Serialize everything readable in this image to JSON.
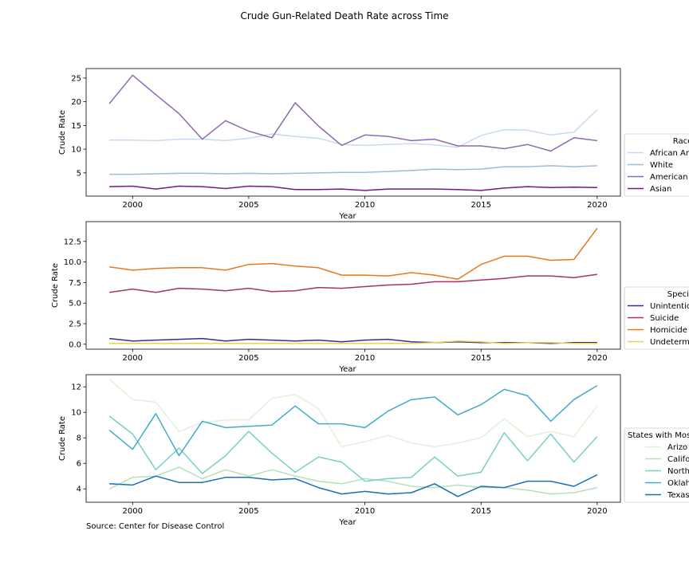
{
  "title": "Crude Gun-Related Death Rate across Time",
  "source": "Source: Center for Disease Control",
  "chart_data": [
    {
      "type": "line",
      "xlabel": "Year",
      "ylabel": "Crude Rate",
      "xlim": [
        1998,
        2021
      ],
      "ylim": [
        0.1,
        27.0
      ],
      "xticks": [
        2000,
        2005,
        2010,
        2015,
        2020
      ],
      "yticks": [
        5,
        10,
        15,
        20,
        25
      ],
      "ytick_labels": [
        "5",
        "10",
        "15",
        "20",
        "25"
      ],
      "legend_title": "Race",
      "legend_placement": "right",
      "x": [
        1999,
        2000,
        2001,
        2002,
        2003,
        2004,
        2005,
        2006,
        2007,
        2008,
        2009,
        2010,
        2011,
        2012,
        2013,
        2014,
        2015,
        2016,
        2017,
        2018,
        2019,
        2020
      ],
      "series": [
        {
          "name": "African American",
          "legend_label": "African An",
          "color": "#c6dbef",
          "values": [
            11.9,
            11.9,
            11.8,
            12.1,
            12.1,
            11.8,
            12.3,
            13.2,
            12.7,
            12.3,
            11.0,
            10.8,
            11.0,
            11.2,
            10.9,
            10.4,
            12.9,
            14.1,
            14.0,
            13.0,
            13.6,
            18.3
          ]
        },
        {
          "name": "White",
          "legend_label": "White",
          "color": "#9ebcda",
          "values": [
            4.7,
            4.7,
            4.8,
            4.9,
            4.9,
            4.8,
            4.9,
            4.8,
            4.9,
            5.0,
            5.1,
            5.1,
            5.3,
            5.5,
            5.8,
            5.7,
            5.8,
            6.3,
            6.3,
            6.5,
            6.3,
            6.5
          ]
        },
        {
          "name": "American Indian",
          "legend_label": "American",
          "color": "#8c6bb1",
          "values": [
            19.6,
            25.6,
            21.5,
            17.5,
            12.1,
            16.0,
            13.8,
            12.4,
            19.8,
            14.9,
            10.8,
            13.0,
            12.7,
            11.8,
            12.1,
            10.7,
            10.7,
            10.1,
            11.0,
            9.6,
            12.4,
            11.8
          ]
        },
        {
          "name": "Asian",
          "legend_label": "Asian",
          "color": "#6e1e82",
          "values": [
            2.1,
            2.2,
            1.6,
            2.2,
            2.1,
            1.7,
            2.2,
            2.1,
            1.5,
            1.5,
            1.6,
            1.3,
            1.6,
            1.6,
            1.6,
            1.5,
            1.3,
            1.8,
            2.1,
            1.9,
            2.0,
            1.9
          ]
        }
      ]
    },
    {
      "type": "line",
      "xlabel": "Year",
      "ylabel": "Crude Rate",
      "xlim": [
        1998,
        2021
      ],
      "ylim": [
        -0.6,
        14.9
      ],
      "xticks": [
        2000,
        2005,
        2010,
        2015,
        2020
      ],
      "yticks": [
        0,
        2.5,
        5,
        7.5,
        10,
        12.5
      ],
      "ytick_labels": [
        "0.0",
        "2.5",
        "5.0",
        "7.5",
        "10.0",
        "12.5"
      ],
      "legend_title": "Species",
      "legend_placement": "right",
      "x": [
        1999,
        2000,
        2001,
        2002,
        2003,
        2004,
        2005,
        2006,
        2007,
        2008,
        2009,
        2010,
        2011,
        2012,
        2013,
        2014,
        2015,
        2016,
        2017,
        2018,
        2019,
        2020
      ],
      "series": [
        {
          "name": "Unintentional",
          "legend_label": "Unintention",
          "color": "#3f2a85",
          "values": [
            0.7,
            0.4,
            0.5,
            0.6,
            0.7,
            0.4,
            0.6,
            0.5,
            0.4,
            0.5,
            0.3,
            0.5,
            0.6,
            0.3,
            0.2,
            0.3,
            0.2,
            0.2,
            0.2,
            0.1,
            0.2,
            0.2
          ]
        },
        {
          "name": "Suicide",
          "legend_label": "Suicide",
          "color": "#a8326e",
          "values": [
            6.3,
            6.7,
            6.3,
            6.8,
            6.7,
            6.5,
            6.8,
            6.4,
            6.5,
            6.9,
            6.8,
            7.0,
            7.2,
            7.3,
            7.6,
            7.6,
            7.8,
            8.0,
            8.3,
            8.3,
            8.1,
            8.5
          ]
        },
        {
          "name": "Homicide",
          "legend_label": "Homicide",
          "color": "#e8781c",
          "values": [
            9.4,
            9.0,
            9.2,
            9.3,
            9.3,
            9.0,
            9.7,
            9.8,
            9.5,
            9.3,
            8.4,
            8.4,
            8.3,
            8.7,
            8.4,
            7.9,
            9.7,
            10.7,
            10.7,
            10.2,
            10.3,
            14.1
          ]
        },
        {
          "name": "Undetermined",
          "legend_label": "Undeterm",
          "color": "#e8d44a",
          "values": [
            0.1,
            0.1,
            0.1,
            0.1,
            0.1,
            0.1,
            0.1,
            0.1,
            0.1,
            0.1,
            0.1,
            0.1,
            0.1,
            0.1,
            0.2,
            0.4,
            0.3,
            0.1,
            0.2,
            0.2,
            0.1,
            0.1
          ]
        }
      ]
    },
    {
      "type": "line",
      "xlabel": "Year",
      "ylabel": "Crude Rate",
      "xlim": [
        1998,
        2021
      ],
      "ylim": [
        2.95,
        12.95
      ],
      "xticks": [
        2000,
        2005,
        2010,
        2015,
        2020
      ],
      "yticks": [
        4,
        6,
        8,
        10,
        12
      ],
      "ytick_labels": [
        "4",
        "6",
        "8",
        "10",
        "12"
      ],
      "legend_title": "States with Mos",
      "legend_placement": "right",
      "x": [
        1999,
        2000,
        2001,
        2002,
        2003,
        2004,
        2005,
        2006,
        2007,
        2008,
        2009,
        2010,
        2011,
        2012,
        2013,
        2014,
        2015,
        2016,
        2017,
        2018,
        2019,
        2020
      ],
      "series": [
        {
          "name": "Arizona",
          "legend_label": "Arizo",
          "color": "#dff2d8",
          "values": [
            12.6,
            11.0,
            10.8,
            8.5,
            9.2,
            9.4,
            9.4,
            11.1,
            11.4,
            10.3,
            7.3,
            7.7,
            8.2,
            7.6,
            7.3,
            7.6,
            8.0,
            9.5,
            8.1,
            8.5,
            8.1,
            10.5
          ]
        },
        {
          "name": "California",
          "legend_label": "Califo",
          "color": "#b4e1b9",
          "values": [
            4.0,
            4.9,
            5.0,
            5.7,
            4.8,
            5.5,
            5.0,
            5.5,
            5.0,
            4.6,
            4.4,
            4.8,
            4.6,
            4.2,
            4.1,
            4.3,
            4.1,
            4.1,
            3.9,
            3.6,
            3.7,
            4.1
          ]
        },
        {
          "name": "North Carolina",
          "legend_label": "North",
          "color": "#7acfc4",
          "values": [
            9.7,
            8.3,
            5.5,
            7.2,
            5.2,
            6.6,
            8.5,
            6.8,
            5.3,
            6.5,
            6.1,
            4.6,
            4.8,
            4.9,
            6.5,
            5.0,
            5.3,
            8.4,
            6.2,
            8.3,
            6.1,
            8.1
          ]
        },
        {
          "name": "Oklahoma",
          "legend_label": "Oklah",
          "color": "#43aacb",
          "values": [
            8.6,
            7.1,
            9.9,
            6.6,
            9.3,
            8.8,
            8.9,
            9.0,
            10.5,
            9.1,
            9.1,
            8.8,
            10.1,
            11.0,
            11.2,
            9.8,
            10.6,
            11.8,
            11.3,
            9.3,
            11.0,
            12.1
          ]
        },
        {
          "name": "Texas",
          "legend_label": "Texas",
          "color": "#1c6fb2",
          "values": [
            4.4,
            4.3,
            5.0,
            4.5,
            4.5,
            4.9,
            4.9,
            4.7,
            4.8,
            4.1,
            3.6,
            3.8,
            3.6,
            3.7,
            4.4,
            3.4,
            4.2,
            4.1,
            4.6,
            4.6,
            4.2,
            5.1
          ]
        }
      ]
    }
  ]
}
